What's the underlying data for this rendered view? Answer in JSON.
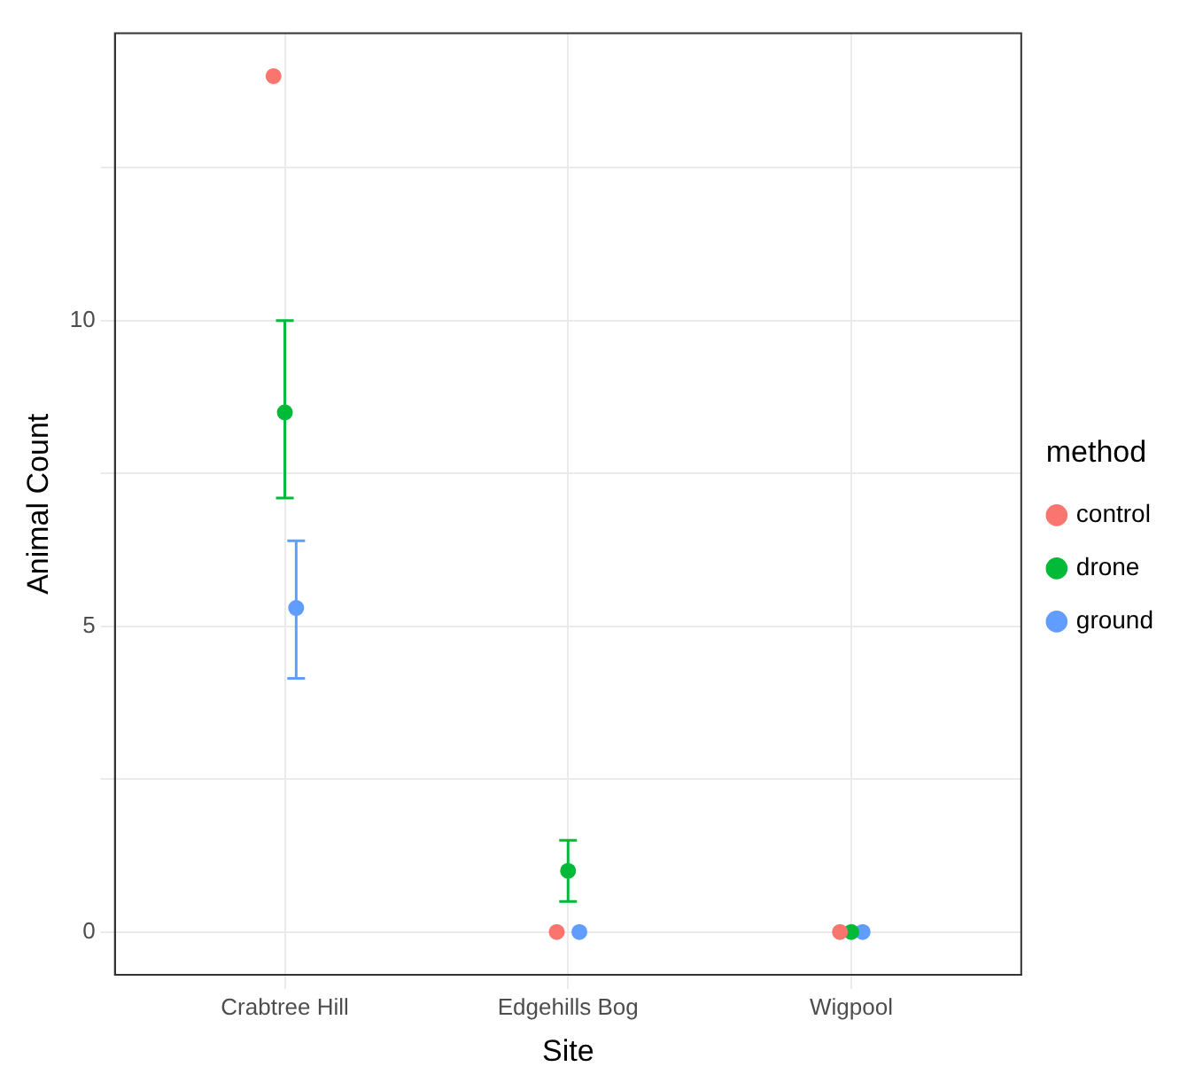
{
  "chart_data": {
    "type": "scatter",
    "xlabel": "Site",
    "ylabel": "Animal Count",
    "legend_title": "method",
    "categories": [
      "Crabtree Hill",
      "Edgehills Bog",
      "Wigpool"
    ],
    "series": [
      {
        "name": "control",
        "color": "#f8766d",
        "values": [
          14,
          0,
          0
        ],
        "errors": [
          null,
          null,
          null
        ]
      },
      {
        "name": "drone",
        "color": "#00ba38",
        "values": [
          8.5,
          1,
          0
        ],
        "errors": [
          [
            7.1,
            10
          ],
          [
            0.5,
            1.5
          ],
          null
        ]
      },
      {
        "name": "ground",
        "color": "#619cff",
        "values": [
          5.3,
          0,
          0
        ],
        "errors": [
          [
            4.15,
            6.4
          ],
          null,
          null
        ]
      }
    ],
    "ylim": [
      -0.7,
      14.7
    ],
    "yticks": [
      0,
      {
        "value": 2.5,
        "label": null
      },
      5,
      {
        "value": 7.5,
        "label": null
      },
      10,
      {
        "value": 12.5,
        "label": null
      }
    ],
    "grid": true,
    "legend": "right",
    "marker": "circle"
  }
}
